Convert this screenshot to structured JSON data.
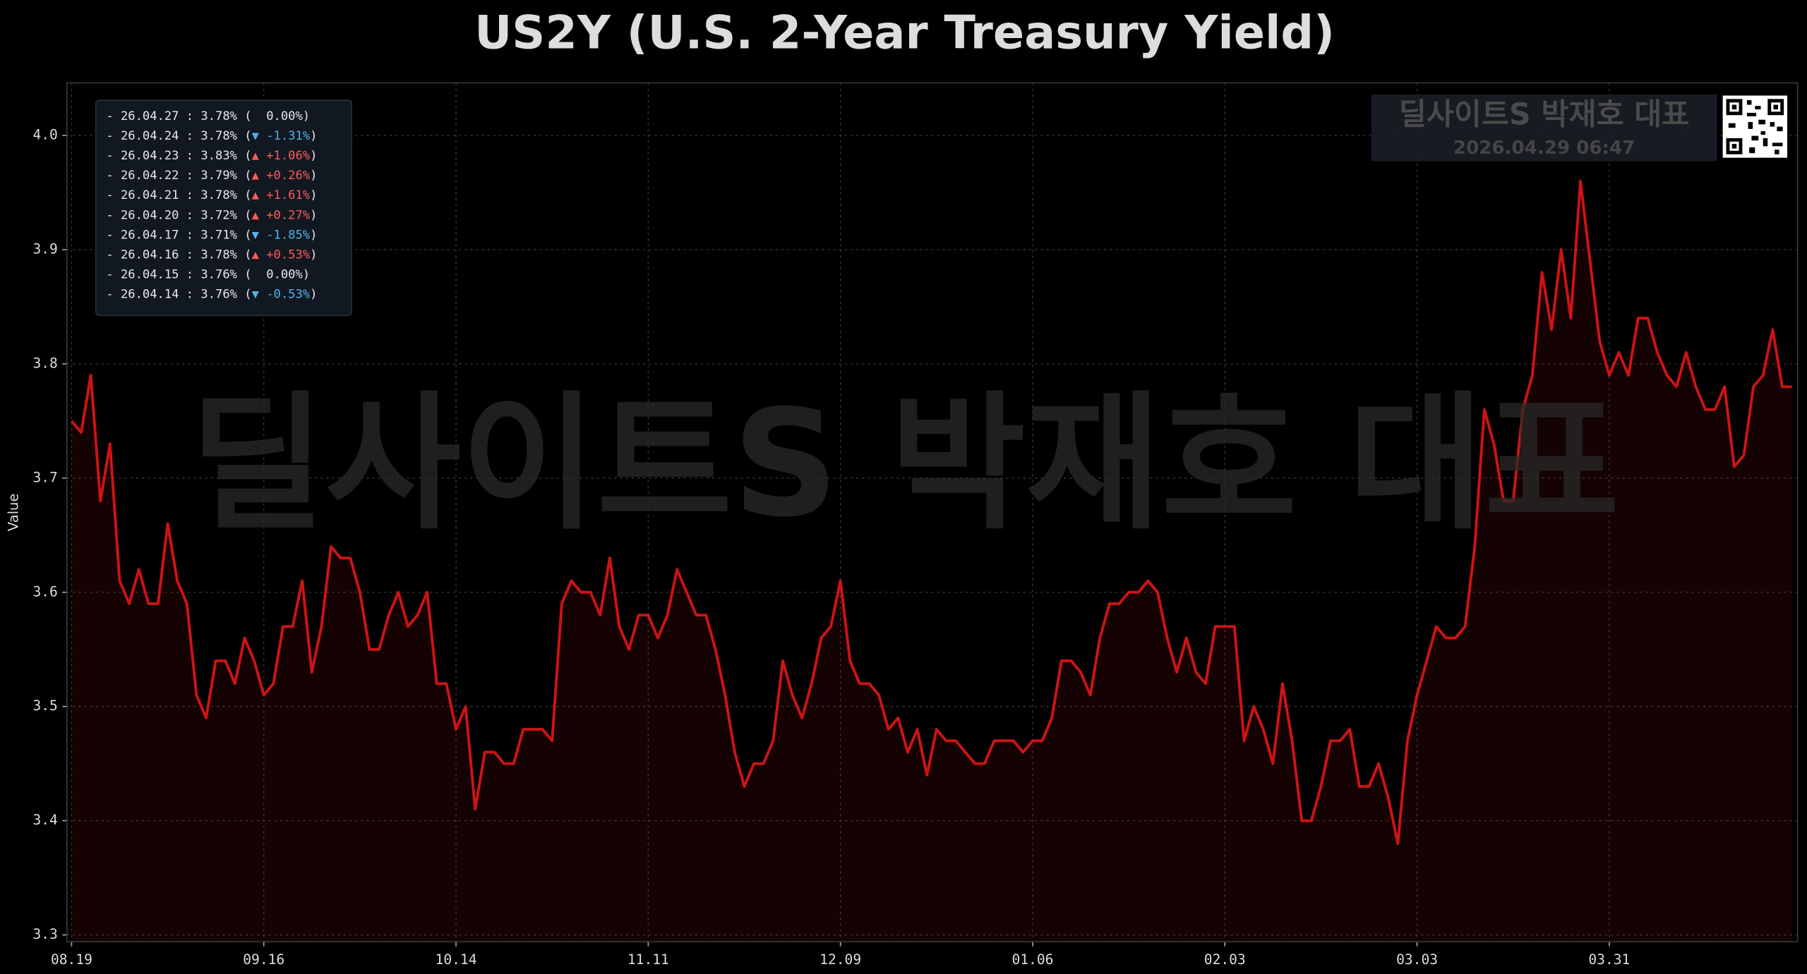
{
  "chart_data": {
    "type": "line",
    "title": "US2Y (U.S. 2-Year Treasury Yield)",
    "y_label": "Value",
    "categories": [
      "08.19",
      null,
      null,
      null,
      null,
      null,
      null,
      null,
      null,
      null,
      null,
      null,
      null,
      null,
      null,
      null,
      null,
      null,
      null,
      null,
      "09.16",
      null,
      null,
      null,
      null,
      null,
      null,
      null,
      null,
      null,
      null,
      null,
      null,
      null,
      null,
      null,
      null,
      null,
      null,
      null,
      "10.14",
      null,
      null,
      null,
      null,
      null,
      null,
      null,
      null,
      null,
      null,
      null,
      null,
      null,
      null,
      null,
      null,
      null,
      null,
      null,
      "11.11",
      null,
      null,
      null,
      null,
      null,
      null,
      null,
      null,
      null,
      null,
      null,
      null,
      null,
      null,
      null,
      null,
      null,
      null,
      null,
      "12.09",
      null,
      null,
      null,
      null,
      null,
      null,
      null,
      null,
      null,
      null,
      null,
      null,
      null,
      null,
      null,
      null,
      null,
      null,
      null,
      "01.06",
      null,
      null,
      null,
      null,
      null,
      null,
      null,
      null,
      null,
      null,
      null,
      null,
      null,
      null,
      null,
      null,
      null,
      null,
      null,
      "02.03",
      null,
      null,
      null,
      null,
      null,
      null,
      null,
      null,
      null,
      null,
      null,
      null,
      null,
      null,
      null,
      null,
      null,
      null,
      null,
      "03.03",
      null,
      null,
      null,
      null,
      null,
      null,
      null,
      null,
      null,
      null,
      null,
      null,
      null,
      null,
      null,
      null,
      null,
      null,
      null,
      "03.31",
      null,
      null,
      null,
      null,
      null,
      null,
      null,
      null,
      null,
      null,
      null,
      null,
      null,
      null,
      null,
      null,
      null,
      null,
      null
    ],
    "series": [
      {
        "name": "US2Y",
        "color": "#cc1414",
        "values": [
          3.75,
          3.74,
          3.79,
          3.68,
          3.73,
          3.61,
          3.59,
          3.62,
          3.59,
          3.59,
          3.66,
          3.61,
          3.59,
          3.51,
          3.49,
          3.54,
          3.54,
          3.52,
          3.56,
          3.54,
          3.51,
          3.52,
          3.57,
          3.57,
          3.61,
          3.53,
          3.57,
          3.64,
          3.63,
          3.63,
          3.6,
          3.55,
          3.55,
          3.58,
          3.6,
          3.57,
          3.58,
          3.6,
          3.52,
          3.52,
          3.48,
          3.5,
          3.41,
          3.46,
          3.46,
          3.45,
          3.45,
          3.48,
          3.48,
          3.48,
          3.47,
          3.59,
          3.61,
          3.6,
          3.6,
          3.58,
          3.63,
          3.57,
          3.55,
          3.58,
          3.58,
          3.56,
          3.58,
          3.62,
          3.6,
          3.58,
          3.58,
          3.55,
          3.51,
          3.46,
          3.43,
          3.45,
          3.45,
          3.47,
          3.54,
          3.51,
          3.49,
          3.52,
          3.56,
          3.57,
          3.61,
          3.54,
          3.52,
          3.52,
          3.51,
          3.48,
          3.49,
          3.46,
          3.48,
          3.44,
          3.48,
          3.47,
          3.47,
          3.46,
          3.45,
          3.45,
          3.47,
          3.47,
          3.47,
          3.46,
          3.47,
          3.47,
          3.49,
          3.54,
          3.54,
          3.53,
          3.51,
          3.56,
          3.59,
          3.59,
          3.6,
          3.6,
          3.61,
          3.6,
          3.56,
          3.53,
          3.56,
          3.53,
          3.52,
          3.57,
          3.57,
          3.57,
          3.47,
          3.5,
          3.48,
          3.45,
          3.52,
          3.47,
          3.4,
          3.4,
          3.43,
          3.47,
          3.47,
          3.48,
          3.43,
          3.43,
          3.45,
          3.42,
          3.38,
          3.47,
          3.51,
          3.54,
          3.57,
          3.56,
          3.56,
          3.57,
          3.64,
          3.76,
          3.73,
          3.68,
          3.68,
          3.76,
          3.79,
          3.88,
          3.83,
          3.9,
          3.84,
          3.96,
          3.89,
          3.82,
          3.79,
          3.81,
          3.79,
          3.84,
          3.84,
          3.81,
          3.79,
          3.78,
          3.81,
          3.78,
          3.76,
          3.76,
          3.78,
          3.71,
          3.72,
          3.78,
          3.79,
          3.83,
          3.78,
          3.78
        ]
      }
    ],
    "ylim": [
      3.294,
      4.046
    ],
    "yticks": [
      3.3,
      3.4,
      3.5,
      3.6,
      3.7,
      3.8,
      3.9,
      {
        "value": 4,
        "label": "4.0"
      }
    ],
    "grid": true,
    "area_fill": true
  },
  "recent": [
    {
      "text": "- 26.04.27 : 3.78% (",
      "change": "  0.00%",
      "end": ")",
      "color": "#e8e8e8"
    },
    {
      "text": "- 26.04.24 : 3.78% (",
      "change": "▼ -1.31%",
      "end": ")",
      "color": "#4fb3e8"
    },
    {
      "text": "- 26.04.23 : 3.83% (",
      "change": "▲ +1.06%",
      "end": ")",
      "color": "#ff5a5a"
    },
    {
      "text": "- 26.04.22 : 3.79% (",
      "change": "▲ +0.26%",
      "end": ")",
      "color": "#ff5a5a"
    },
    {
      "text": "- 26.04.21 : 3.78% (",
      "change": "▲ +1.61%",
      "end": ")",
      "color": "#ff5a5a"
    },
    {
      "text": "- 26.04.20 : 3.72% (",
      "change": "▲ +0.27%",
      "end": ")",
      "color": "#ff5a5a"
    },
    {
      "text": "- 26.04.17 : 3.71% (",
      "change": "▼ -1.85%",
      "end": ")",
      "color": "#4fb3e8"
    },
    {
      "text": "- 26.04.16 : 3.78% (",
      "change": "▲ +0.53%",
      "end": ")",
      "color": "#ff5a5a"
    },
    {
      "text": "- 26.04.15 : 3.76% (",
      "change": "  0.00%",
      "end": ")",
      "color": "#e8e8e8"
    },
    {
      "text": "- 26.04.14 : 3.76% (",
      "change": "▼ -0.53%",
      "end": ")",
      "color": "#4fb3e8"
    }
  ],
  "watermark": "딜사이트S 박재호 대표",
  "brand": "딜사이트S 박재호 대표",
  "timestamp": "2026.04.29 06:47"
}
